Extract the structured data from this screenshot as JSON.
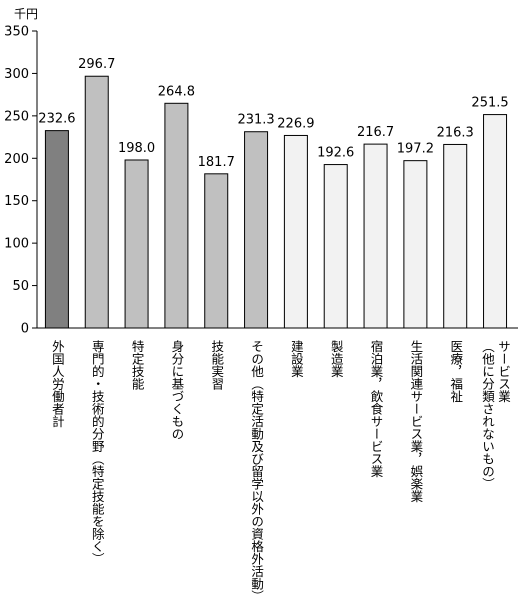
{
  "chart_data": {
    "type": "bar",
    "unit_label": "千円",
    "categories": [
      "外国人労働者計",
      "専門的・技術的分野（特定技能を除く）",
      "特定技能",
      "身分に基づくもの",
      "技能実習",
      "その他（特定活動及び留学以外の資格外活動）",
      "建設業",
      "製造業",
      "宿泊業，飲食サービス業",
      "生活関連サービス業，娯楽業",
      "医療，福祉",
      [
        "サービス業",
        "（他に分類されないもの）"
      ]
    ],
    "values": [
      232.6,
      296.7,
      198.0,
      264.8,
      181.7,
      231.3,
      226.9,
      192.6,
      216.7,
      197.2,
      216.3,
      251.5
    ],
    "value_labels": [
      "232.6",
      "296.7",
      "198.0",
      "264.8",
      "181.7",
      "231.3",
      "226.9",
      "192.6",
      "216.7",
      "197.2",
      "216.3",
      "251.5"
    ],
    "yticks": [
      "0",
      "50",
      "100",
      "150",
      "200",
      "250",
      "300",
      "350"
    ],
    "ylim": [
      0,
      350
    ],
    "colors": [
      "#808080",
      "#c0c0c0",
      "#c0c0c0",
      "#c0c0c0",
      "#c0c0c0",
      "#c0c0c0",
      "#f2f2f2",
      "#f2f2f2",
      "#f2f2f2",
      "#f2f2f2",
      "#f2f2f2",
      "#f2f2f2"
    ],
    "bar_stroke": "#000000",
    "grid": false
  }
}
